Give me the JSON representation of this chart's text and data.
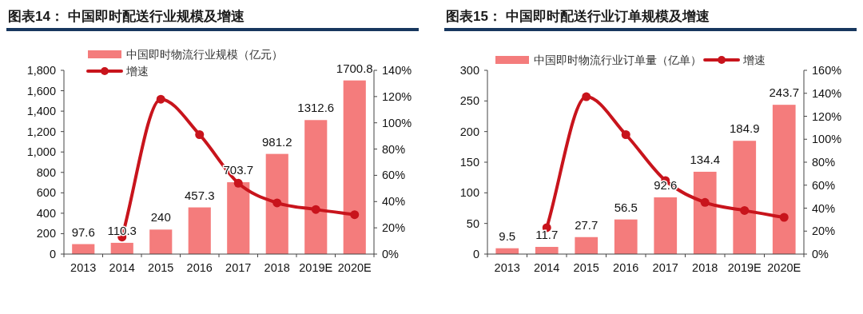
{
  "chart_data": [
    {
      "type": "bar",
      "title": "图表14：  中国即时配送行业规模及增速",
      "legend": "top left",
      "grid": false,
      "categories": [
        "2013",
        "2014",
        "2015",
        "2016",
        "2017",
        "2018",
        "2019E",
        "2020E"
      ],
      "series": [
        {
          "name": "中国即时物流行业规模（亿元）",
          "color": "#f47c7c",
          "values": [
            97.6,
            110.3,
            240,
            457.3,
            703.7,
            981.2,
            1312.6,
            1700.8
          ],
          "value_labels": [
            "97.6",
            "110.3",
            "240",
            "457.3",
            "703.7",
            "981.2",
            "1312.6",
            "1700.8"
          ]
        },
        {
          "name": "增速",
          "type": "line",
          "axis": "y2",
          "color": "#c8141c",
          "marker": "circle",
          "values": [
            null,
            13,
            118,
            91,
            54,
            39,
            34,
            30
          ]
        }
      ],
      "ylim": [
        0,
        1800
      ],
      "yticks": [
        0,
        200,
        400,
        600,
        800,
        {
          "value": 1000,
          "label": "1,000"
        },
        {
          "value": 1200,
          "label": "1,200"
        },
        {
          "value": 1400,
          "label": "1,400"
        },
        {
          "value": 1600,
          "label": "1,600"
        },
        {
          "value": 1800,
          "label": "1,800"
        }
      ],
      "y2lim": [
        0,
        140
      ],
      "y2ticks": [
        {
          "value": 0,
          "label": "0%"
        },
        {
          "value": 20,
          "label": "20%"
        },
        {
          "value": 40,
          "label": "40%"
        },
        {
          "value": 60,
          "label": "60%"
        },
        {
          "value": 80,
          "label": "80%"
        },
        {
          "value": 100,
          "label": "100%"
        },
        {
          "value": 120,
          "label": "120%"
        },
        {
          "value": 140,
          "label": "140%"
        }
      ]
    },
    {
      "type": "bar",
      "title": "图表15：  中国即时配送行业订单规模及增速",
      "legend": "top",
      "grid": false,
      "categories": [
        "2013",
        "2014",
        "2015",
        "2016",
        "2017",
        "2018",
        "2019E",
        "2020E"
      ],
      "series": [
        {
          "name": "中国即时物流行业订单量（亿单）",
          "color": "#f47c7c",
          "values": [
            9.5,
            11.7,
            27.7,
            56.5,
            92.6,
            134.4,
            184.9,
            243.7
          ],
          "value_labels": [
            "9.5",
            "11.7",
            "27.7",
            "56.5",
            "92.6",
            "134.4",
            "184.9",
            "243.7"
          ]
        },
        {
          "name": "增速",
          "type": "line",
          "axis": "y2",
          "color": "#c8141c",
          "marker": "circle",
          "values": [
            null,
            23,
            137,
            104,
            64,
            45,
            38,
            32
          ]
        }
      ],
      "ylim": [
        0,
        300
      ],
      "yticks": [
        0,
        50,
        100,
        150,
        200,
        250,
        300
      ],
      "y2lim": [
        0,
        160
      ],
      "y2ticks": [
        {
          "value": 0,
          "label": "0%"
        },
        {
          "value": 20,
          "label": "20%"
        },
        {
          "value": 40,
          "label": "40%"
        },
        {
          "value": 60,
          "label": "60%"
        },
        {
          "value": 80,
          "label": "80%"
        },
        {
          "value": 100,
          "label": "100%"
        },
        {
          "value": 120,
          "label": "120%"
        },
        {
          "value": 140,
          "label": "140%"
        },
        {
          "value": 160,
          "label": "160%"
        }
      ]
    }
  ]
}
